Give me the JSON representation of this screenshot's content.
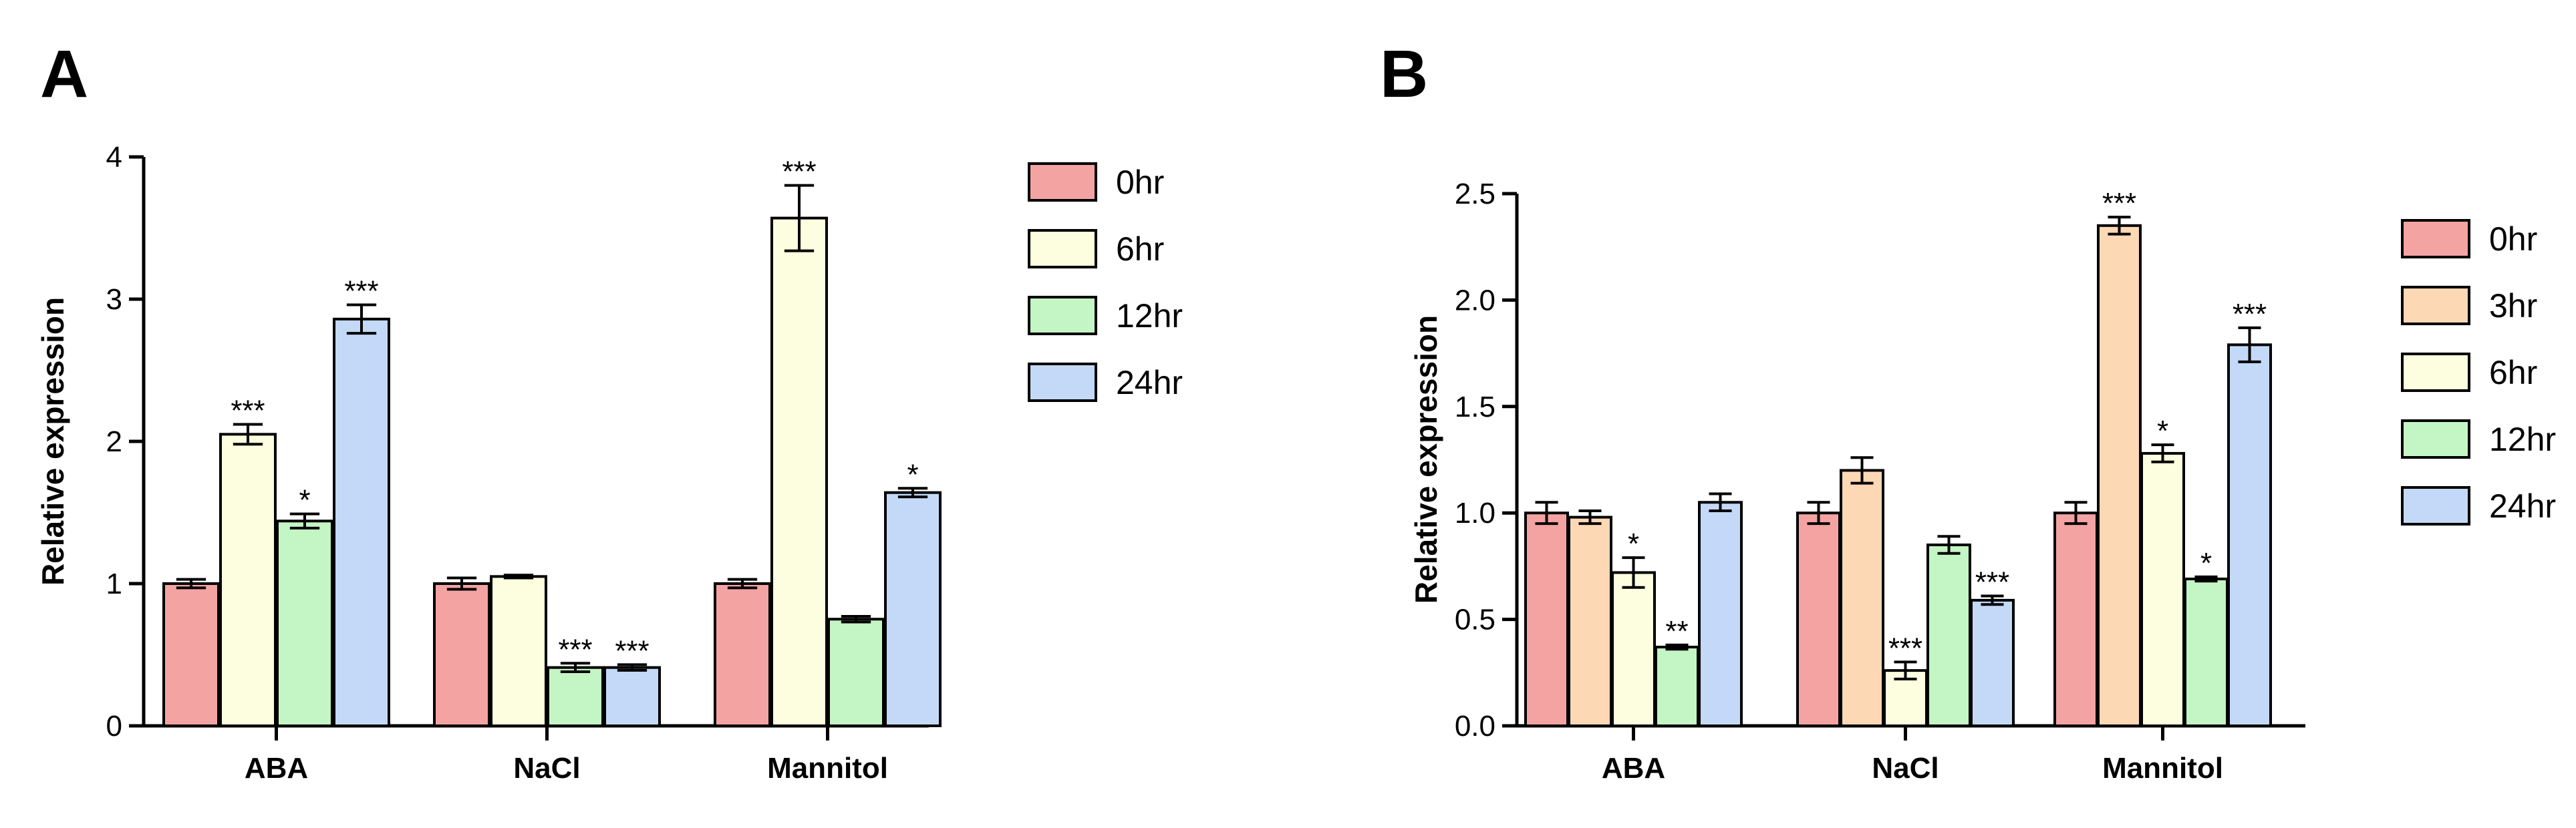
{
  "chart_data": [
    {
      "panel": "A",
      "type": "bar",
      "ylabel": "Relative expression",
      "ylim": [
        0,
        4
      ],
      "yticks": [
        "0",
        "1",
        "2",
        "3",
        "4"
      ],
      "yticks_values": [
        0,
        1,
        2,
        3,
        4
      ],
      "categories": [
        "ABA",
        "NaCl",
        "Mannitol"
      ],
      "series": [
        {
          "name": "0hr",
          "color": "#f4a3a3",
          "values": [
            1.0,
            1.0,
            1.0
          ],
          "errors": [
            0.03,
            0.04,
            0.03
          ],
          "sig": [
            "",
            "",
            ""
          ]
        },
        {
          "name": "6hr",
          "color": "#fdfde0",
          "values": [
            2.05,
            1.05,
            3.57
          ],
          "errors": [
            0.07,
            0.01,
            0.23
          ],
          "sig": [
            "***",
            "",
            "***"
          ]
        },
        {
          "name": "12hr",
          "color": "#c4f5c4",
          "values": [
            1.44,
            0.41,
            0.75
          ],
          "errors": [
            0.05,
            0.03,
            0.02
          ],
          "sig": [
            "*",
            "***",
            ""
          ]
        },
        {
          "name": "24hr",
          "color": "#c3d9f7",
          "values": [
            2.86,
            0.41,
            1.64
          ],
          "errors": [
            0.1,
            0.02,
            0.03
          ],
          "sig": [
            "***",
            "***",
            "*"
          ]
        }
      ]
    },
    {
      "panel": "B",
      "type": "bar",
      "ylabel": "Relative expression",
      "ylim": [
        0,
        2.5
      ],
      "yticks": [
        "0.0",
        "0.5",
        "1.0",
        "1.5",
        "2.0",
        "2.5"
      ],
      "yticks_values": [
        0,
        0.5,
        1.0,
        1.5,
        2.0,
        2.5
      ],
      "categories": [
        "ABA",
        "NaCl",
        "Mannitol"
      ],
      "series": [
        {
          "name": "0hr",
          "color": "#f4a3a3",
          "values": [
            1.0,
            1.0,
            1.0
          ],
          "errors": [
            0.05,
            0.05,
            0.05
          ],
          "sig": [
            "",
            "",
            ""
          ]
        },
        {
          "name": "3hr",
          "color": "#fcd8b4",
          "values": [
            0.98,
            1.2,
            2.35
          ],
          "errors": [
            0.03,
            0.06,
            0.04
          ],
          "sig": [
            "",
            "",
            "***"
          ]
        },
        {
          "name": "6hr",
          "color": "#fdfde0",
          "values": [
            0.72,
            0.26,
            1.28
          ],
          "errors": [
            0.07,
            0.04,
            0.04
          ],
          "sig": [
            "*",
            "***",
            "*"
          ]
        },
        {
          "name": "12hr",
          "color": "#c4f5c4",
          "values": [
            0.37,
            0.85,
            0.69
          ],
          "errors": [
            0.01,
            0.04,
            0.01
          ],
          "sig": [
            "**",
            "",
            "*"
          ]
        },
        {
          "name": "24hr",
          "color": "#c3d9f7",
          "values": [
            1.05,
            0.59,
            1.79
          ],
          "errors": [
            0.04,
            0.02,
            0.08
          ],
          "sig": [
            "",
            "***",
            "***"
          ]
        }
      ]
    }
  ]
}
